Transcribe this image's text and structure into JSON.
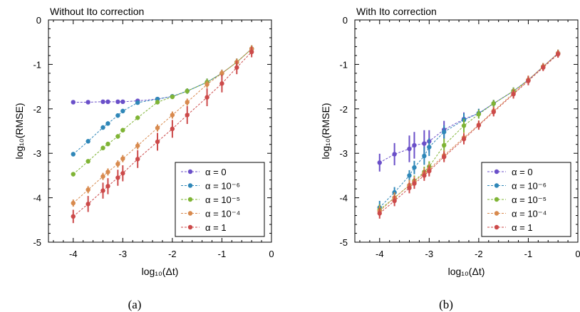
{
  "caption_a": "(a)",
  "caption_b": "(b)",
  "chart_data": [
    {
      "type": "line",
      "title": "Without Ito correction",
      "xlabel": "log₁₀(Δt)",
      "ylabel": "log₁₀(RMSE)",
      "xlim": [
        -4.5,
        0
      ],
      "ylim": [
        -5,
        0
      ],
      "xticks": [
        -4,
        -3,
        -2,
        -1,
        0
      ],
      "yticks": [
        0,
        -1,
        -2,
        -3,
        -4,
        -5
      ],
      "grid": false,
      "legend_position": "bottom-right",
      "series": [
        {
          "name": "α = 0",
          "color": "#6a4fc9",
          "x": [
            -4,
            -3.7,
            -3.4,
            -3.3,
            -3.1,
            -3.0,
            -2.7,
            -2.3,
            -2.0,
            -1.7,
            -1.3,
            -1.0,
            -0.7,
            -0.4
          ],
          "y": [
            -1.85,
            -1.85,
            -1.84,
            -1.84,
            -1.84,
            -1.84,
            -1.82,
            -1.78,
            -1.72,
            -1.6,
            -1.4,
            -1.2,
            -0.95,
            -0.65
          ],
          "err": [
            0.02,
            0.02,
            0.02,
            0.02,
            0.02,
            0.02,
            0.03,
            0.03,
            0.04,
            0.06,
            0.08,
            0.08,
            0.08,
            0.08
          ]
        },
        {
          "name": "α = 10⁻⁶",
          "color": "#2f87b8",
          "x": [
            -4,
            -3.7,
            -3.4,
            -3.3,
            -3.1,
            -3.0,
            -2.7,
            -2.3,
            -2.0,
            -1.7,
            -1.3,
            -1.0,
            -0.7,
            -0.4
          ],
          "y": [
            -3.02,
            -2.73,
            -2.42,
            -2.33,
            -2.15,
            -2.05,
            -1.86,
            -1.78,
            -1.72,
            -1.6,
            -1.4,
            -1.2,
            -0.95,
            -0.65
          ],
          "err": [
            0.05,
            0.05,
            0.05,
            0.05,
            0.05,
            0.05,
            0.04,
            0.04,
            0.04,
            0.06,
            0.08,
            0.08,
            0.08,
            0.08
          ]
        },
        {
          "name": "α = 10⁻⁵",
          "color": "#7fb435",
          "x": [
            -4,
            -3.7,
            -3.4,
            -3.3,
            -3.1,
            -3.0,
            -2.7,
            -2.3,
            -2.0,
            -1.7,
            -1.3,
            -1.0,
            -0.7,
            -0.4
          ],
          "y": [
            -3.47,
            -3.18,
            -2.88,
            -2.79,
            -2.62,
            -2.48,
            -2.2,
            -1.85,
            -1.73,
            -1.6,
            -1.4,
            -1.2,
            -0.95,
            -0.65
          ],
          "err": [
            0.05,
            0.05,
            0.05,
            0.05,
            0.05,
            0.05,
            0.05,
            0.05,
            0.05,
            0.06,
            0.08,
            0.08,
            0.08,
            0.08
          ]
        },
        {
          "name": "α = 10⁻⁴",
          "color": "#d88a4e",
          "x": [
            -4,
            -3.7,
            -3.4,
            -3.3,
            -3.1,
            -3.0,
            -2.7,
            -2.3,
            -2.0,
            -1.7,
            -1.3,
            -1.0,
            -0.7,
            -0.4
          ],
          "y": [
            -4.12,
            -3.82,
            -3.52,
            -3.42,
            -3.24,
            -3.12,
            -2.83,
            -2.43,
            -2.14,
            -1.85,
            -1.45,
            -1.2,
            -0.95,
            -0.65
          ],
          "err": [
            0.08,
            0.08,
            0.08,
            0.08,
            0.08,
            0.08,
            0.08,
            0.08,
            0.08,
            0.08,
            0.08,
            0.08,
            0.08,
            0.08
          ]
        },
        {
          "name": "α = 1",
          "color": "#cc4a4a",
          "x": [
            -4,
            -3.7,
            -3.4,
            -3.3,
            -3.1,
            -3.0,
            -2.7,
            -2.3,
            -2.0,
            -1.7,
            -1.3,
            -1.0,
            -0.7,
            -0.4
          ],
          "y": [
            -4.42,
            -4.14,
            -3.84,
            -3.74,
            -3.55,
            -3.45,
            -3.13,
            -2.74,
            -2.45,
            -2.14,
            -1.74,
            -1.43,
            -1.07,
            -0.72
          ],
          "err": [
            0.15,
            0.18,
            0.18,
            0.18,
            0.18,
            0.18,
            0.2,
            0.2,
            0.2,
            0.2,
            0.2,
            0.2,
            0.15,
            0.12
          ]
        }
      ]
    },
    {
      "type": "line",
      "title": "With Ito correction",
      "xlabel": "log₁₀(Δt)",
      "ylabel": "log₁₀(RMSE)",
      "xlim": [
        -4.5,
        0
      ],
      "ylim": [
        -5,
        0
      ],
      "xticks": [
        -4,
        -3,
        -2,
        -1,
        0
      ],
      "yticks": [
        0,
        -1,
        -2,
        -3,
        -4,
        -5
      ],
      "grid": false,
      "legend_position": "bottom-right",
      "series": [
        {
          "name": "α = 0",
          "color": "#6a4fc9",
          "x": [
            -4,
            -3.7,
            -3.4,
            -3.3,
            -3.1,
            -3.0,
            -2.7,
            -2.3,
            -2.0,
            -1.7,
            -1.3,
            -1.0,
            -0.7,
            -0.4
          ],
          "y": [
            -3.21,
            -3.02,
            -2.9,
            -2.82,
            -2.78,
            -2.73,
            -2.47,
            -2.23,
            -2.1,
            -1.88,
            -1.6,
            -1.35,
            -1.05,
            -0.75
          ],
          "err": [
            0.2,
            0.25,
            0.3,
            0.3,
            0.3,
            0.25,
            0.2,
            0.15,
            0.1,
            0.08,
            0.08,
            0.08,
            0.08,
            0.08
          ]
        },
        {
          "name": "α = 10⁻⁶",
          "color": "#2f87b8",
          "x": [
            -4,
            -3.7,
            -3.4,
            -3.3,
            -3.1,
            -3.0,
            -2.7,
            -2.3,
            -2.0,
            -1.7,
            -1.3,
            -1.0,
            -0.7,
            -0.4
          ],
          "y": [
            -4.22,
            -3.88,
            -3.5,
            -3.32,
            -3.06,
            -2.86,
            -2.52,
            -2.25,
            -2.1,
            -1.88,
            -1.6,
            -1.35,
            -1.05,
            -0.75
          ],
          "err": [
            0.15,
            0.12,
            0.12,
            0.15,
            0.2,
            0.2,
            0.15,
            0.15,
            0.1,
            0.08,
            0.08,
            0.08,
            0.08,
            0.08
          ]
        },
        {
          "name": "α = 10⁻⁵",
          "color": "#7fb435",
          "x": [
            -4,
            -3.7,
            -3.4,
            -3.3,
            -3.1,
            -3.0,
            -2.7,
            -2.3,
            -2.0,
            -1.7,
            -1.3,
            -1.0,
            -0.7,
            -0.4
          ],
          "y": [
            -4.27,
            -4.0,
            -3.72,
            -3.62,
            -3.42,
            -3.3,
            -2.82,
            -2.38,
            -2.12,
            -1.88,
            -1.6,
            -1.35,
            -1.05,
            -0.75
          ],
          "err": [
            0.12,
            0.12,
            0.12,
            0.12,
            0.12,
            0.12,
            0.15,
            0.15,
            0.1,
            0.08,
            0.08,
            0.08,
            0.08,
            0.08
          ]
        },
        {
          "name": "α = 10⁻⁴",
          "color": "#d88a4e",
          "x": [
            -4,
            -3.7,
            -3.4,
            -3.3,
            -3.1,
            -3.0,
            -2.7,
            -2.3,
            -2.0,
            -1.7,
            -1.3,
            -1.0,
            -0.7,
            -0.4
          ],
          "y": [
            -4.3,
            -4.0,
            -3.72,
            -3.64,
            -3.45,
            -3.36,
            -3.05,
            -2.65,
            -2.36,
            -2.05,
            -1.65,
            -1.35,
            -1.05,
            -0.75
          ],
          "err": [
            0.12,
            0.12,
            0.12,
            0.12,
            0.12,
            0.12,
            0.12,
            0.12,
            0.1,
            0.1,
            0.1,
            0.1,
            0.08,
            0.08
          ]
        },
        {
          "name": "α = 1",
          "color": "#cc4a4a",
          "x": [
            -4,
            -3.7,
            -3.4,
            -3.3,
            -3.1,
            -3.0,
            -2.7,
            -2.3,
            -2.0,
            -1.7,
            -1.3,
            -1.0,
            -0.7,
            -0.4
          ],
          "y": [
            -4.35,
            -4.07,
            -3.78,
            -3.68,
            -3.5,
            -3.4,
            -3.08,
            -2.68,
            -2.37,
            -2.07,
            -1.67,
            -1.37,
            -1.07,
            -0.77
          ],
          "err": [
            0.12,
            0.12,
            0.12,
            0.12,
            0.12,
            0.12,
            0.12,
            0.12,
            0.1,
            0.1,
            0.1,
            0.1,
            0.08,
            0.08
          ]
        }
      ]
    }
  ]
}
